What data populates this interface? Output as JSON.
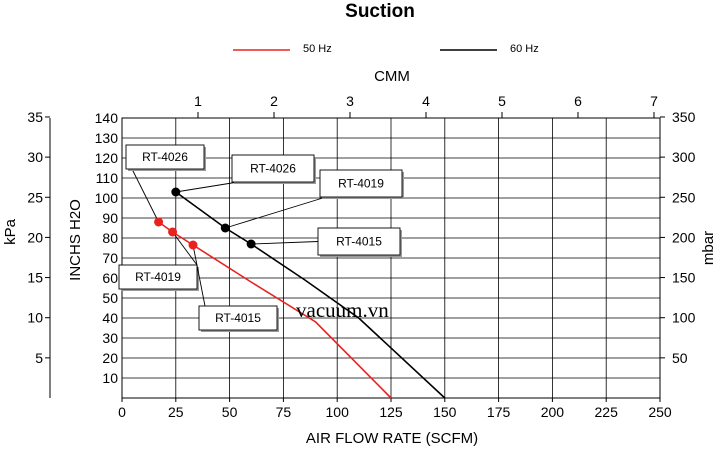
{
  "chart_data": {
    "type": "line",
    "title": "Suction",
    "xlabel": "AIR FLOW RATE (SCFM)",
    "x_top_label": "CMM",
    "ylabel_left_outer": "kPa",
    "ylabel_left_inner": "INCHS H2O",
    "ylabel_right": "mbar",
    "xlim": [
      0,
      250
    ],
    "ylim": [
      0,
      140
    ],
    "x_ticks": [
      0,
      25,
      50,
      75,
      100,
      125,
      150,
      175,
      200,
      225,
      250
    ],
    "x_top_ticks": [
      1,
      2,
      3,
      4,
      5,
      6,
      7
    ],
    "y_ticks": [
      10,
      20,
      30,
      40,
      50,
      60,
      70,
      80,
      90,
      100,
      110,
      120,
      130,
      140
    ],
    "kpa_ticks": [
      5,
      10,
      15,
      20,
      25,
      30,
      35
    ],
    "mbar_ticks": [
      50,
      100,
      150,
      200,
      250,
      300,
      350
    ],
    "grid": true,
    "legend_position": "top",
    "colors": {
      "50Hz": "#e8231f",
      "60Hz": "#000000"
    },
    "series": [
      {
        "name": "50 Hz",
        "x": [
          17,
          23.5,
          33,
          60,
          90,
          125
        ],
        "y": [
          88,
          83,
          76.5,
          58,
          38,
          0
        ],
        "points": [
          {
            "label": "RT-4026",
            "x": 17,
            "y": 88
          },
          {
            "label": "RT-4019",
            "x": 23.5,
            "y": 83
          },
          {
            "label": "RT-4015",
            "x": 33,
            "y": 76.5
          }
        ]
      },
      {
        "name": "60 Hz",
        "x": [
          25,
          48,
          60,
          85,
          110,
          150
        ],
        "y": [
          103,
          85,
          77,
          59,
          40,
          0
        ],
        "points": [
          {
            "label": "RT-4026",
            "x": 25,
            "y": 103
          },
          {
            "label": "RT-4019",
            "x": 48,
            "y": 85
          },
          {
            "label": "RT-4015",
            "x": 60,
            "y": 77
          }
        ]
      }
    ],
    "watermark": "vacuum.vn"
  }
}
